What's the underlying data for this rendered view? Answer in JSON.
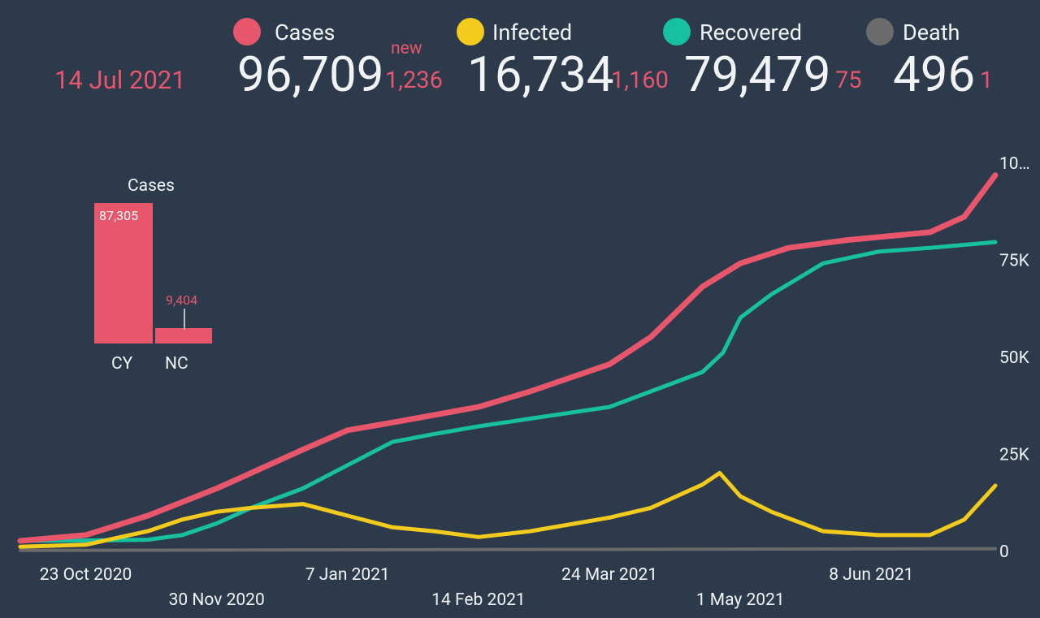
{
  "date": "14 Jul 2021",
  "new_label": "new",
  "legend": [
    {
      "key": "cases",
      "label": "Cases",
      "color": "#e8566b",
      "value": "96,709",
      "new": "1,236"
    },
    {
      "key": "infected",
      "label": "Infected",
      "color": "#f3cb1c",
      "value": "16,734",
      "new": "1,160"
    },
    {
      "key": "recovered",
      "label": "Recovered",
      "color": "#17c0a0",
      "value": "79,479",
      "new": "75"
    },
    {
      "key": "death",
      "label": "Death",
      "color": "#6b6b6b",
      "value": "496",
      "new": "1"
    }
  ],
  "mini_chart": {
    "title": "Cases",
    "bars": [
      {
        "label": "CY",
        "value": 87305,
        "display": "87,305"
      },
      {
        "label": "NC",
        "value": 9404,
        "display": "9,404"
      }
    ]
  },
  "chart_data": {
    "type": "line",
    "x_ticks": [
      "23 Oct 2020",
      "30 Nov 2020",
      "7 Jan 2021",
      "14 Feb 2021",
      "24 Mar 2021",
      "1 May 2021",
      "8 Jun 2021"
    ],
    "y_ticks": [
      "0",
      "25K",
      "50K",
      "75K",
      "10…"
    ],
    "ylim": [
      0,
      100000
    ],
    "series": [
      {
        "name": "Cases",
        "color": "#e8566b",
        "x": [
          "2020-10-04",
          "2020-10-23",
          "2020-11-10",
          "2020-11-30",
          "2020-12-10",
          "2020-12-25",
          "2021-01-07",
          "2021-01-20",
          "2021-02-14",
          "2021-03-01",
          "2021-03-24",
          "2021-04-05",
          "2021-04-20",
          "2021-05-01",
          "2021-05-15",
          "2021-06-01",
          "2021-06-25",
          "2021-07-05",
          "2021-07-14"
        ],
        "values": [
          2500,
          4000,
          9000,
          16000,
          20000,
          26000,
          31000,
          33000,
          37000,
          41000,
          48000,
          55000,
          68000,
          74000,
          78000,
          80000,
          82000,
          86000,
          96709
        ]
      },
      {
        "name": "Infected",
        "color": "#f3cb1c",
        "x": [
          "2020-10-04",
          "2020-10-23",
          "2020-11-10",
          "2020-11-20",
          "2020-11-30",
          "2020-12-10",
          "2020-12-25",
          "2021-01-07",
          "2021-01-20",
          "2021-02-01",
          "2021-02-14",
          "2021-03-01",
          "2021-03-24",
          "2021-04-05",
          "2021-04-20",
          "2021-04-25",
          "2021-05-01",
          "2021-05-10",
          "2021-05-25",
          "2021-06-10",
          "2021-06-25",
          "2021-07-05",
          "2021-07-14"
        ],
        "values": [
          1000,
          1500,
          5000,
          8000,
          10000,
          11000,
          12000,
          9000,
          6000,
          5000,
          3500,
          5000,
          8500,
          11000,
          17000,
          20000,
          14000,
          10000,
          5000,
          4000,
          4000,
          8000,
          16734
        ]
      },
      {
        "name": "Recovered",
        "color": "#17c0a0",
        "x": [
          "2020-10-04",
          "2020-10-23",
          "2020-11-10",
          "2020-11-20",
          "2020-11-30",
          "2020-12-10",
          "2020-12-25",
          "2021-01-07",
          "2021-01-20",
          "2021-02-01",
          "2021-02-14",
          "2021-03-01",
          "2021-03-24",
          "2021-04-05",
          "2021-04-20",
          "2021-04-26",
          "2021-05-01",
          "2021-05-10",
          "2021-05-25",
          "2021-06-10",
          "2021-06-25",
          "2021-07-14"
        ],
        "values": [
          2500,
          2600,
          2800,
          4000,
          7000,
          11000,
          16000,
          22000,
          28000,
          30000,
          32000,
          34000,
          37000,
          41000,
          46000,
          51000,
          60000,
          66000,
          74000,
          77000,
          78000,
          79479
        ]
      },
      {
        "name": "Death",
        "color": "#6b6b6b",
        "x": [
          "2020-10-04",
          "2021-07-14"
        ],
        "values": [
          40,
          496
        ]
      }
    ]
  }
}
